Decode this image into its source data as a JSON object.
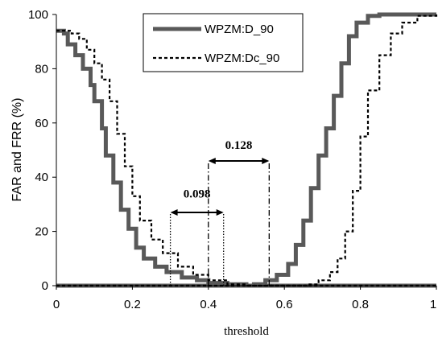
{
  "chart_data": {
    "type": "line",
    "title": "",
    "xlabel": "threshold",
    "ylabel": "FAR and FRR (%)",
    "xlim": [
      0,
      1
    ],
    "ylim": [
      0,
      100
    ],
    "xticks": [
      "0",
      "0.2",
      "0.4",
      "0.6",
      "0.8",
      "1"
    ],
    "yticks": [
      "0",
      "20",
      "40",
      "60",
      "80",
      "100"
    ],
    "grid": false,
    "legend_position": "top-center",
    "series": [
      {
        "name": "WPZM:D_90",
        "style": "solid-thick",
        "color": "#595959",
        "curves": {
          "FAR": [
            [
              0,
              94
            ],
            [
              0.01,
              94
            ],
            [
              0.02,
              93
            ],
            [
              0.03,
              89
            ],
            [
              0.05,
              85
            ],
            [
              0.07,
              80
            ],
            [
              0.09,
              74
            ],
            [
              0.1,
              68
            ],
            [
              0.12,
              58
            ],
            [
              0.13,
              48
            ],
            [
              0.15,
              38
            ],
            [
              0.17,
              28
            ],
            [
              0.19,
              21
            ],
            [
              0.21,
              14
            ],
            [
              0.23,
              10
            ],
            [
              0.26,
              7
            ],
            [
              0.29,
              5
            ],
            [
              0.33,
              3
            ],
            [
              0.37,
              2
            ],
            [
              0.4,
              1
            ],
            [
              0.45,
              0.5
            ],
            [
              0.5,
              0
            ],
            [
              1,
              0
            ]
          ],
          "FRR": [
            [
              0,
              0
            ],
            [
              0.48,
              0
            ],
            [
              0.52,
              0.5
            ],
            [
              0.55,
              2
            ],
            [
              0.58,
              4
            ],
            [
              0.61,
              8
            ],
            [
              0.63,
              15
            ],
            [
              0.65,
              24
            ],
            [
              0.67,
              36
            ],
            [
              0.69,
              48
            ],
            [
              0.71,
              58
            ],
            [
              0.73,
              70
            ],
            [
              0.75,
              82
            ],
            [
              0.77,
              92
            ],
            [
              0.79,
              97
            ],
            [
              0.82,
              99.5
            ],
            [
              0.85,
              100
            ],
            [
              1,
              100
            ]
          ]
        }
      },
      {
        "name": "WPZM:Dc_90",
        "style": "dashed",
        "color": "#000000",
        "curves": {
          "FAR": [
            [
              0,
              94
            ],
            [
              0.02,
              94
            ],
            [
              0.04,
              93
            ],
            [
              0.06,
              91
            ],
            [
              0.08,
              87
            ],
            [
              0.1,
              82
            ],
            [
              0.12,
              76
            ],
            [
              0.14,
              68
            ],
            [
              0.16,
              56
            ],
            [
              0.18,
              44
            ],
            [
              0.2,
              33
            ],
            [
              0.22,
              24
            ],
            [
              0.25,
              17
            ],
            [
              0.28,
              12
            ],
            [
              0.32,
              7
            ],
            [
              0.36,
              4
            ],
            [
              0.4,
              2
            ],
            [
              0.45,
              0.5
            ],
            [
              0.5,
              0
            ],
            [
              1,
              0
            ]
          ],
          "FRR": [
            [
              0,
              0
            ],
            [
              0.62,
              0
            ],
            [
              0.66,
              0.5
            ],
            [
              0.69,
              2
            ],
            [
              0.72,
              5
            ],
            [
              0.74,
              10
            ],
            [
              0.76,
              20
            ],
            [
              0.78,
              35
            ],
            [
              0.8,
              55
            ],
            [
              0.82,
              72
            ],
            [
              0.85,
              85
            ],
            [
              0.88,
              93
            ],
            [
              0.91,
              97
            ],
            [
              0.95,
              99.5
            ],
            [
              1,
              100
            ]
          ]
        }
      }
    ],
    "annotations": [
      {
        "label": "0.098",
        "x1": 0.3,
        "x2": 0.44,
        "arrow_y": 27,
        "label_y": 34
      },
      {
        "label": "0.128",
        "x1": 0.4,
        "x2": 0.56,
        "arrow_y": 46,
        "label_y": 52
      }
    ],
    "annotation_lines": [
      {
        "x": 0.3,
        "y_top": 27,
        "style": "dotted"
      },
      {
        "x": 0.44,
        "y_top": 27,
        "style": "dotted"
      },
      {
        "x": 0.4,
        "y_top": 46,
        "style": "dashdot"
      },
      {
        "x": 0.56,
        "y_top": 46,
        "style": "dashdot"
      }
    ]
  }
}
